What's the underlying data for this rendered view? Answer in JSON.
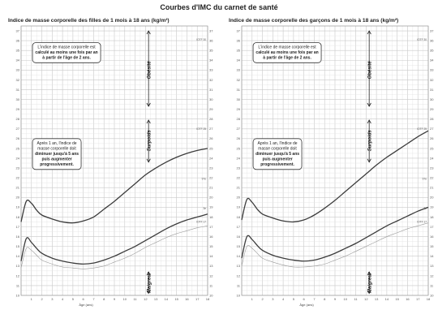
{
  "page": {
    "title": "Courbes d'IMC du carnet de santé"
  },
  "chart_data": [
    {
      "type": "line",
      "title": "Indice de masse corporelle des filles de 1 mois à 18 ans (kg/m²)",
      "xlabel": "Âge (ans)",
      "x_ticks": [
        "1",
        "2",
        "3",
        "4",
        "5",
        "6",
        "7",
        "8",
        "9",
        "10",
        "11",
        "12",
        "13",
        "14",
        "15",
        "16",
        "17",
        "18"
      ],
      "y_ticks": [
        "10",
        "11",
        "12",
        "13",
        "14",
        "15",
        "16",
        "17",
        "18",
        "19",
        "20",
        "21",
        "22",
        "23",
        "24",
        "25",
        "26",
        "27",
        "28",
        "29",
        "30",
        "31",
        "32",
        "33",
        "34",
        "35",
        "36",
        "37"
      ],
      "xlim": [
        0,
        18
      ],
      "ylim": [
        10,
        37.5
      ],
      "series": [
        {
          "name": "IOTF 25",
          "x": [
            0,
            0.5,
            1,
            1.5,
            2,
            3,
            4,
            5,
            6,
            7,
            8,
            9,
            10,
            11,
            12,
            13,
            14,
            15,
            16,
            17,
            18
          ],
          "values": [
            17.5,
            19.6,
            19.4,
            18.7,
            18.2,
            17.8,
            17.5,
            17.4,
            17.6,
            18.0,
            18.8,
            19.6,
            20.5,
            21.4,
            22.3,
            23.0,
            23.6,
            24.1,
            24.5,
            24.8,
            25.0
          ]
        },
        {
          "name": "97e percentile",
          "x": [
            0,
            0.5,
            1,
            1.5,
            2,
            3,
            4,
            5,
            6,
            7,
            8,
            9,
            10,
            11,
            12,
            13,
            14,
            15,
            16,
            17,
            18
          ],
          "values": [
            13.5,
            15.8,
            15.4,
            14.8,
            14.3,
            13.8,
            13.5,
            13.3,
            13.2,
            13.3,
            13.6,
            14.0,
            14.5,
            15.0,
            15.6,
            16.2,
            16.8,
            17.3,
            17.7,
            18.0,
            18.3
          ]
        },
        {
          "name": "3e percentile",
          "x": [
            0,
            0.5,
            1,
            1.5,
            2,
            3,
            4,
            5,
            6,
            7,
            8,
            9,
            10,
            11,
            12,
            13,
            14,
            15,
            16,
            17,
            18
          ],
          "values": [
            12.8,
            14.8,
            14.6,
            14.1,
            13.6,
            13.2,
            12.9,
            12.8,
            12.7,
            12.8,
            13.0,
            13.4,
            13.8,
            14.3,
            14.9,
            15.4,
            15.9,
            16.3,
            16.6,
            16.9,
            17.1
          ]
        }
      ],
      "curve_labels": [
        "IOTF 30",
        "IOTF 25",
        "97e",
        "3e",
        "IOTF 17"
      ],
      "zones": {
        "top": "Obésité",
        "middle": "Surpoids",
        "bottom": "Maigreur"
      },
      "notes": {
        "top": [
          "L'indice de masse corporelle est",
          "calculé au moins une fois par an",
          "à partir de l'âge de 2 ans."
        ],
        "middle": [
          "Après 1 an, l'indice de",
          "masse corporelle doit",
          "diminuer jusqu'à 5 ans",
          "puis augmenter",
          "progressivement."
        ]
      }
    },
    {
      "type": "line",
      "title": "Indice de masse corporelle des garçons de 1 mois à 18 ans (kg/m²)",
      "xlabel": "Âge (ans)",
      "x_ticks": [
        "1",
        "2",
        "3",
        "4",
        "5",
        "6",
        "7",
        "8",
        "9",
        "10",
        "11",
        "12",
        "13",
        "14",
        "15",
        "16",
        "17",
        "18"
      ],
      "y_ticks": [
        "10",
        "11",
        "12",
        "13",
        "14",
        "15",
        "16",
        "17",
        "18",
        "19",
        "20",
        "21",
        "22",
        "23",
        "24",
        "25",
        "26",
        "27",
        "28",
        "29",
        "30",
        "31",
        "32",
        "33",
        "34",
        "35",
        "36",
        "37"
      ],
      "xlim": [
        0,
        18
      ],
      "ylim": [
        10,
        37.5
      ],
      "series": [
        {
          "name": "IOTF 25",
          "x": [
            0,
            0.5,
            1,
            1.5,
            2,
            3,
            4,
            5,
            6,
            7,
            8,
            9,
            10,
            11,
            12,
            13,
            14,
            15,
            16,
            17,
            18
          ],
          "values": [
            17.7,
            19.8,
            19.5,
            18.8,
            18.3,
            17.9,
            17.6,
            17.5,
            17.7,
            18.2,
            18.9,
            19.7,
            20.6,
            21.5,
            22.4,
            23.3,
            24.1,
            24.8,
            25.5,
            26.2,
            26.8
          ]
        },
        {
          "name": "97e percentile",
          "x": [
            0,
            0.5,
            1,
            1.5,
            2,
            3,
            4,
            5,
            6,
            7,
            8,
            9,
            10,
            11,
            12,
            13,
            14,
            15,
            16,
            17,
            18
          ],
          "values": [
            13.8,
            16.0,
            15.7,
            15.1,
            14.6,
            14.1,
            13.8,
            13.6,
            13.5,
            13.6,
            13.9,
            14.3,
            14.8,
            15.3,
            15.9,
            16.5,
            17.1,
            17.6,
            18.1,
            18.6,
            19.0
          ]
        },
        {
          "name": "3e percentile",
          "x": [
            0,
            0.5,
            1,
            1.5,
            2,
            3,
            4,
            5,
            6,
            7,
            8,
            9,
            10,
            11,
            12,
            13,
            14,
            15,
            16,
            17,
            18
          ],
          "values": [
            13.0,
            15.0,
            14.8,
            14.3,
            13.8,
            13.4,
            13.1,
            12.9,
            12.9,
            13.0,
            13.2,
            13.6,
            14.0,
            14.5,
            15.0,
            15.5,
            16.0,
            16.4,
            16.8,
            17.1,
            17.4
          ]
        }
      ],
      "curve_labels": [
        "IOTF 30",
        "IOTF 25",
        "97e",
        "3e",
        "IOTF 17"
      ],
      "zones": {
        "top": "Obésité",
        "middle": "Surpoids",
        "bottom": "Maigreur"
      },
      "notes": {
        "top": [
          "L'indice de masse corporelle est",
          "calculé au moins une fois par an",
          "à partir de l'âge de 2 ans."
        ],
        "middle": [
          "Après 1 an, l'indice de",
          "masse corporelle doit",
          "diminuer jusqu'à 5 ans",
          "puis augmenter",
          "progressivement."
        ]
      }
    }
  ]
}
